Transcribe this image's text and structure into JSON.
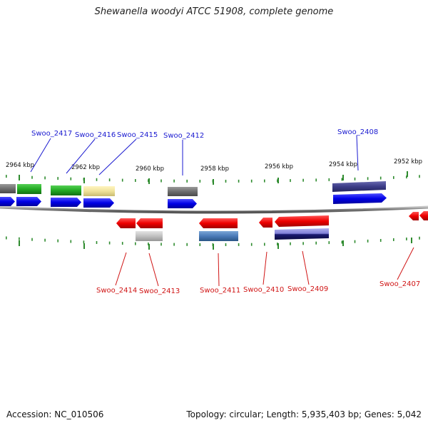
{
  "title": "Shewanella woodyi ATCC 51908, complete genome",
  "footer": {
    "accession": "Accession: NC_010506",
    "summary": "Topology: circular; Length: 5,935,403 bp; Genes: 5,042"
  },
  "colors": {
    "forward_label": "#1a1ad0",
    "reverse_label": "#d01414",
    "tick": "#2e8b2e",
    "backbone": "#888888"
  },
  "ticks": [
    {
      "label": "2964 kbp"
    },
    {
      "label": "2962 kbp"
    },
    {
      "label": "2960 kbp"
    },
    {
      "label": "2958 kbp"
    },
    {
      "label": "2956 kbp"
    },
    {
      "label": "2954 kbp"
    },
    {
      "label": "2952 kbp"
    }
  ],
  "forward_genes": [
    {
      "name": "Swoo_2417"
    },
    {
      "name": "Swoo_2416"
    },
    {
      "name": "Swoo_2415"
    },
    {
      "name": "Swoo_2412"
    },
    {
      "name": "Swoo_2408"
    }
  ],
  "reverse_genes": [
    {
      "name": "Swoo_2414"
    },
    {
      "name": "Swoo_2413"
    },
    {
      "name": "Swoo_2411"
    },
    {
      "name": "Swoo_2410"
    },
    {
      "name": "Swoo_2409"
    },
    {
      "name": "Swoo_2407"
    }
  ]
}
